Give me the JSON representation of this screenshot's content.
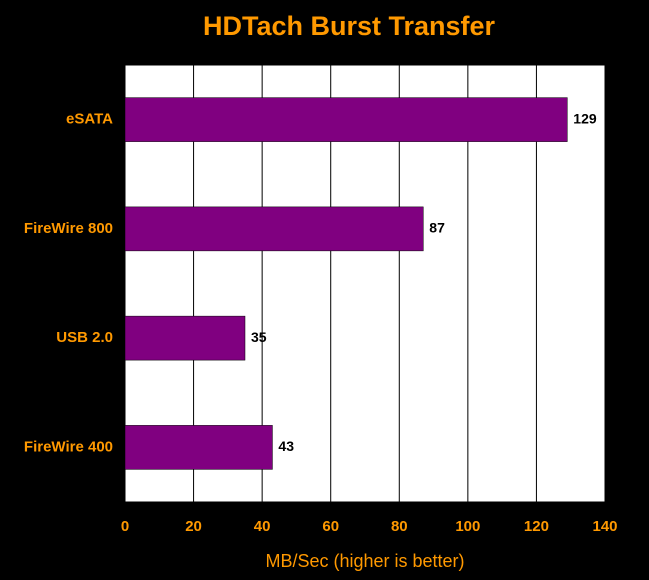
{
  "chart_data": {
    "type": "bar",
    "orientation": "horizontal",
    "title": "HDTach Burst Transfer",
    "x_label": "MB/Sec (higher is better)",
    "categories": [
      "eSATA",
      "FireWire 800",
      "USB 2.0",
      "FireWire 400"
    ],
    "values": [
      129,
      87,
      35,
      43
    ],
    "color": "#800080",
    "xlim": [
      0,
      140
    ],
    "xticks": [
      0,
      20,
      40,
      60,
      80,
      100,
      120,
      140
    ],
    "grid": true
  }
}
